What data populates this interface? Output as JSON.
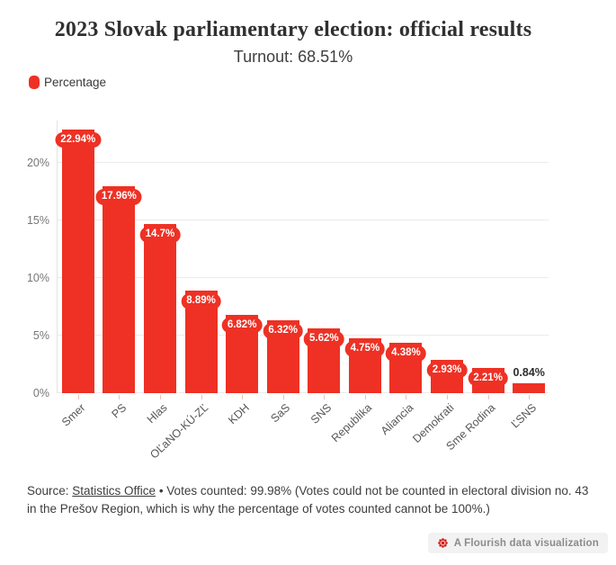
{
  "header": {
    "title": "2023 Slovak parliamentary election: official results",
    "subtitle": "Turnout: 68.51%"
  },
  "legend": {
    "label": "Percentage",
    "swatch_color": "#ee3124"
  },
  "chart_data": {
    "type": "bar",
    "title": "2023 Slovak parliamentary election: official results",
    "subtitle": "Turnout: 68.51%",
    "series_name": "Percentage",
    "categories": [
      "Smer",
      "PS",
      "Hlas",
      "OĽaNO-KÚ-ZĽ",
      "KDH",
      "SaS",
      "SNS",
      "Republika",
      "Aliancia",
      "Demokrati",
      "Sme Rodina",
      "ĽSNS"
    ],
    "values": [
      22.94,
      17.96,
      14.7,
      8.89,
      6.82,
      6.32,
      5.62,
      4.75,
      4.38,
      2.93,
      2.21,
      0.84
    ],
    "value_labels": [
      "22.94%",
      "17.96%",
      "14.7%",
      "8.89%",
      "6.82%",
      "6.32%",
      "5.62%",
      "4.75%",
      "4.38%",
      "2.93%",
      "2.21%",
      "0.84%"
    ],
    "value_label_styles": [
      "pill",
      "pill",
      "pill",
      "pill",
      "pill",
      "pill",
      "pill",
      "pill",
      "pill",
      "pill",
      "pill",
      "plain"
    ],
    "y_ticks": [
      "0%",
      "5%",
      "10%",
      "15%",
      "20%"
    ],
    "y_tick_values": [
      0,
      5,
      10,
      15,
      20
    ],
    "ylim": [
      0,
      23.7
    ],
    "grid": true,
    "legend_position": "top-left",
    "bar_color": "#ee3124",
    "xlabel": "",
    "ylabel": ""
  },
  "footer": {
    "source_prefix": "Source: ",
    "source_link": "Statistics Office",
    "separator": " • ",
    "text": "Votes counted: 99.98% (Votes could not be counted in electoral division no. 43 in the Prešov Region, which is why the percentage of votes counted cannot be 100%.)"
  },
  "credit": {
    "label": "A Flourish data visualization",
    "icon_color": "#d6211e"
  }
}
